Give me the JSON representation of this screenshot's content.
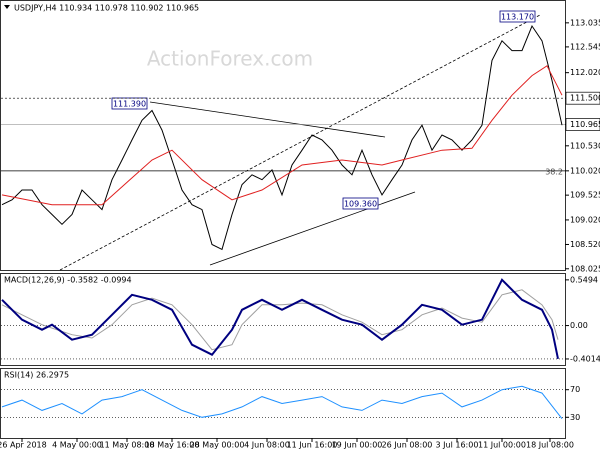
{
  "header": "USDJPY,H4  110.934 110.978 110.902 110.965",
  "watermark": "ActionForex.com",
  "chart_data": [
    {
      "type": "line",
      "title": "",
      "xlim": [
        0,
        56
      ],
      "ylim": [
        108.0,
        113.48
      ],
      "yticks": [
        113.035,
        112.545,
        {
          "value": 112.02,
          "label": "112.020"
        },
        {
          "value": 111.5,
          "label": "111.500"
        },
        110.965,
        {
          "value": 110.53,
          "label": "110.530"
        },
        {
          "value": 110.02,
          "label": "110.020"
        },
        109.525,
        {
          "value": 109.02,
          "label": "109.020"
        },
        {
          "value": 108.52,
          "label": "108.520"
        },
        108.025
      ],
      "annotations": [
        "111.390",
        "113.170",
        "109.360",
        "38.2"
      ],
      "series": [
        {
          "color": "#000000",
          "values": [
            109.33,
            109.43,
            109.63,
            109.63,
            109.33,
            109.13,
            108.93,
            109.13,
            109.63,
            109.43,
            109.23,
            109.84,
            110.24,
            110.65,
            111.05,
            111.25,
            110.85,
            110.24,
            109.63,
            109.33,
            109.23,
            108.52,
            108.42,
            109.13,
            109.74,
            109.94,
            109.84,
            110.04,
            109.53,
            110.14,
            110.44,
            110.75,
            110.65,
            110.44,
            110.14,
            109.94,
            110.44,
            109.94,
            109.53,
            109.84,
            110.14,
            110.65,
            110.95,
            110.44,
            110.75,
            110.65,
            110.44,
            110.65,
            110.95,
            112.27,
            112.67,
            112.47,
            112.47,
            112.97,
            112.67,
            111.86,
            110.95
          ]
        },
        {
          "color": "#e02020",
          "x": [
            0,
            5,
            10,
            15,
            17,
            20,
            23,
            26,
            30,
            34,
            38,
            40,
            44,
            47,
            49,
            51,
            53,
            54.5,
            56
          ],
          "values": [
            109.53,
            109.33,
            109.33,
            110.24,
            110.44,
            109.84,
            109.43,
            109.63,
            110.14,
            110.24,
            110.14,
            110.24,
            110.44,
            110.48,
            111.05,
            111.56,
            111.96,
            112.16,
            111.56
          ]
        }
      ]
    },
    {
      "type": "line",
      "title": "MACD(12,26,9) -0.3582 -0.0994",
      "xlim": [
        0,
        56
      ],
      "ylim": [
        -0.474,
        0.62
      ],
      "yticks": [
        0.5494,
        {
          "value": 0,
          "label": "0.00"
        },
        -0.4014
      ],
      "series": [
        {
          "color": "#a0a0a0",
          "x": [
            0,
            2,
            4,
            5,
            7,
            9,
            11,
            13,
            15,
            17,
            19,
            21,
            23,
            24,
            26,
            28,
            30,
            32,
            34,
            36,
            38,
            40,
            42,
            44,
            46,
            48,
            50,
            52,
            54,
            55,
            55.6
          ],
          "values": [
            0.25,
            0.13,
            0.01,
            -0.03,
            -0.11,
            -0.15,
            0.01,
            0.25,
            0.33,
            0.25,
            0.01,
            -0.29,
            -0.23,
            0.01,
            0.25,
            0.25,
            0.27,
            0.25,
            0.13,
            0.04,
            -0.11,
            -0.05,
            0.13,
            0.21,
            0.09,
            0.04,
            0.37,
            0.43,
            0.25,
            0.07,
            -0.17
          ]
        },
        {
          "color": "#000080",
          "x": [
            0,
            2,
            4,
            5,
            7,
            9,
            11,
            13,
            15,
            17,
            19,
            21,
            23,
            24,
            26,
            28,
            30,
            32,
            34,
            36,
            38,
            40,
            42,
            44,
            46,
            48,
            50,
            52,
            54,
            55,
            55.6
          ],
          "values": [
            0.31,
            0.07,
            -0.05,
            0.01,
            -0.17,
            -0.11,
            0.13,
            0.37,
            0.31,
            0.19,
            -0.23,
            -0.35,
            -0.05,
            0.19,
            0.31,
            0.19,
            0.31,
            0.19,
            0.07,
            0.01,
            -0.17,
            0.01,
            0.25,
            0.19,
            0.01,
            0.07,
            0.55,
            0.31,
            0.19,
            -0.05,
            -0.4
          ]
        }
      ]
    },
    {
      "type": "line",
      "title": "RSI(14) 26.2975",
      "xlim": [
        0,
        56
      ],
      "ylim": [
        0,
        100
      ],
      "yticks": [
        70,
        30
      ],
      "xticks": [
        {
          "value": 2,
          "label": "26 Apr 2018"
        },
        {
          "value": 7.5,
          "label": "4 May 00:00"
        },
        {
          "value": 12.5,
          "label": "11 May 08:00"
        },
        {
          "value": 17,
          "label": "18 May 16:00"
        },
        {
          "value": 21.5,
          "label": "28 May 00:00"
        },
        {
          "value": 26.5,
          "label": "4 Jun 08:00"
        },
        {
          "value": 31,
          "label": "11 Jun 16:00"
        },
        {
          "value": 35.5,
          "label": "19 Jun 00:00"
        },
        {
          "value": 40.5,
          "label": "26 Jun 08:00"
        },
        {
          "value": 45.5,
          "label": "3 Jul 16:00"
        },
        {
          "value": 50,
          "label": "11 Jul 00:00"
        },
        {
          "value": 54.8,
          "label": "18 Jul 08:00"
        }
      ],
      "series": [
        {
          "color": "#1e90ff",
          "x": [
            0,
            2,
            4,
            6,
            8,
            10,
            12,
            14,
            16,
            18,
            20,
            22,
            24,
            26,
            28,
            30,
            32,
            34,
            36,
            38,
            40,
            42,
            44,
            46,
            48,
            50,
            52,
            54,
            56
          ],
          "values": [
            45,
            55,
            40,
            50,
            35,
            55,
            60,
            70,
            55,
            40,
            30,
            35,
            45,
            60,
            50,
            55,
            60,
            45,
            40,
            55,
            50,
            60,
            65,
            45,
            55,
            70,
            75,
            65,
            28
          ]
        }
      ]
    }
  ]
}
